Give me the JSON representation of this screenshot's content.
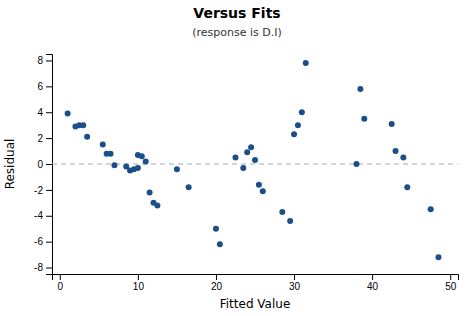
{
  "chart_data": {
    "type": "scatter",
    "title": "Versus Fits",
    "subtitle": "(response is D.I)",
    "xlabel": "Fitted Value",
    "ylabel": "Residual",
    "x": [
      1.0,
      2.0,
      2.5,
      3.0,
      3.5,
      5.5,
      6.0,
      6.5,
      7.0,
      8.5,
      9.0,
      9.5,
      10.0,
      10.0,
      10.5,
      11.0,
      11.5,
      12.0,
      12.5,
      15.0,
      16.5,
      20.0,
      20.5,
      22.5,
      23.5,
      24.0,
      24.5,
      25.0,
      25.5,
      26.0,
      28.5,
      29.5,
      30.0,
      30.5,
      31.0,
      31.5,
      38.0,
      38.5,
      39.0,
      42.5,
      43.0,
      44.0,
      44.5,
      47.5,
      48.5
    ],
    "values": [
      3.9,
      2.9,
      3.0,
      3.0,
      2.1,
      1.5,
      0.8,
      0.8,
      -0.1,
      -0.2,
      -0.5,
      -0.4,
      -0.3,
      0.7,
      0.6,
      0.2,
      -2.2,
      -3.0,
      -3.2,
      -0.4,
      -1.8,
      -5.0,
      -6.2,
      0.5,
      -0.3,
      0.9,
      1.3,
      0.3,
      -1.6,
      -2.1,
      -3.7,
      -4.4,
      2.3,
      3.0,
      4.0,
      7.8,
      0.0,
      5.8,
      3.5,
      3.1,
      1.0,
      0.5,
      -1.8,
      -3.5,
      -7.2
    ],
    "color": "#1B4F8A",
    "marker": "circle",
    "hlines": [
      {
        "y": 0,
        "color": "#AAAAAA",
        "line_style": "dashed"
      }
    ],
    "xlim": [
      -1,
      51
    ],
    "ylim": [
      -8.5,
      8.5
    ],
    "xticks": [
      0,
      10,
      20,
      30,
      40,
      50
    ],
    "yticks": [
      -8,
      -6,
      -4,
      -2,
      0,
      2,
      4,
      6,
      8
    ],
    "grid": false
  }
}
